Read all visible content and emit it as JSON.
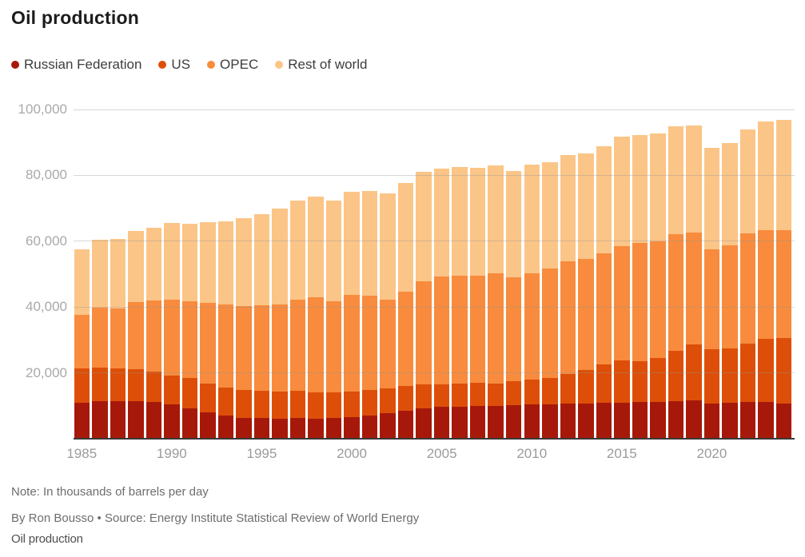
{
  "title": "Oil production",
  "footer": {
    "note": "Note: In thousands of barrels per day",
    "byline": "By Ron Bousso • Source: Energy Institute Statistical Review of World Energy",
    "caption": "Oil production"
  },
  "chart_data": {
    "type": "bar",
    "stacked": true,
    "title": "Oil production",
    "xlabel": "",
    "ylabel": "",
    "units": "thousand barrels per day",
    "ylim": [
      0,
      100000
    ],
    "yticks": [
      20000,
      40000,
      60000,
      80000,
      100000
    ],
    "ytick_labels": [
      "20,000",
      "40,000",
      "60,000",
      "80,000",
      "100,000"
    ],
    "xticks": [
      1985,
      1990,
      1995,
      2000,
      2005,
      2010,
      2015,
      2020
    ],
    "grid": true,
    "gridline_color": "#d9d9d9",
    "axis_line_color": "#3a3a3a",
    "legend_position": "top",
    "x": [
      1985,
      1986,
      1987,
      1988,
      1989,
      1990,
      1991,
      1992,
      1993,
      1994,
      1995,
      1996,
      1997,
      1998,
      1999,
      2000,
      2001,
      2002,
      2003,
      2004,
      2005,
      2006,
      2007,
      2008,
      2009,
      2010,
      2011,
      2012,
      2013,
      2014,
      2015,
      2016,
      2017,
      2018,
      2019,
      2020,
      2021,
      2022,
      2023,
      2024
    ],
    "series": [
      {
        "name": "Russian Federation",
        "color": "#a6190a",
        "values": [
          10840,
          11310,
          11480,
          11440,
          11140,
          10340,
          9260,
          7980,
          7070,
          6420,
          6290,
          6110,
          6230,
          6170,
          6270,
          6580,
          7060,
          7700,
          8540,
          9290,
          9600,
          9820,
          10040,
          9950,
          10140,
          10370,
          10510,
          10640,
          10780,
          10860,
          11010,
          11270,
          11260,
          11440,
          11540,
          10670,
          10940,
          11200,
          11080,
          10750
        ]
      },
      {
        "name": "US",
        "color": "#dd4f08",
        "values": [
          10580,
          10230,
          9940,
          9770,
          9160,
          8910,
          9080,
          8870,
          8580,
          8390,
          8320,
          8300,
          8270,
          8010,
          7730,
          7730,
          7670,
          7630,
          7400,
          7230,
          6900,
          6840,
          6860,
          6780,
          7260,
          7550,
          7870,
          8900,
          10070,
          11770,
          12750,
          12340,
          13140,
          15310,
          17050,
          16460,
          16590,
          17770,
          19360,
          19900
        ]
      },
      {
        "name": "OPEC",
        "color": "#f88b3d",
        "values": [
          16100,
          18300,
          18100,
          20300,
          21800,
          23000,
          23300,
          24400,
          25100,
          25400,
          25900,
          26400,
          27700,
          28800,
          27800,
          29300,
          28600,
          27000,
          28700,
          31200,
          32800,
          32900,
          32500,
          33500,
          31600,
          32300,
          33200,
          34400,
          33700,
          33600,
          34800,
          35900,
          35600,
          35500,
          34000,
          30500,
          31300,
          33300,
          32800,
          32600
        ]
      },
      {
        "name": "Rest of world",
        "color": "#fbc587",
        "values": [
          19950,
          20600,
          21200,
          21600,
          21950,
          23180,
          23570,
          24480,
          25240,
          26880,
          27590,
          29100,
          30020,
          30500,
          30530,
          31370,
          31890,
          32120,
          33000,
          33340,
          32810,
          33030,
          32980,
          32720,
          32260,
          33080,
          32470,
          32260,
          32030,
          32600,
          33110,
          32640,
          32660,
          32620,
          32610,
          30770,
          31050,
          31580,
          33110,
          33640
        ]
      }
    ]
  }
}
